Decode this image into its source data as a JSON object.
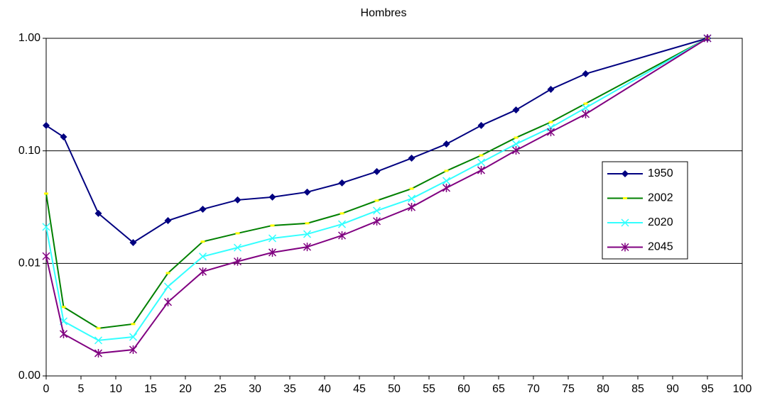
{
  "chart_data": {
    "type": "line",
    "title": "Hombres",
    "log_scale": true,
    "grid": true,
    "legend": "right",
    "x": [
      0,
      2.5,
      7.5,
      12.5,
      17.5,
      22.5,
      27.5,
      32.5,
      37.5,
      42.5,
      47.5,
      52.5,
      57.5,
      62.5,
      67.5,
      72.5,
      77.5,
      95
    ],
    "xlim": [
      0,
      100
    ],
    "xticks": [
      0,
      5,
      10,
      15,
      20,
      25,
      30,
      35,
      40,
      45,
      50,
      55,
      60,
      65,
      70,
      75,
      80,
      85,
      90,
      95,
      100
    ],
    "ylim": [
      0.001,
      1
    ],
    "yticks": [
      {
        "value": 0.001,
        "label": "0.00"
      },
      {
        "value": 0.01,
        "label": "0.01"
      },
      {
        "value": 0.1,
        "label": "0.10"
      },
      {
        "value": 1,
        "label": "1.00"
      }
    ],
    "series": [
      {
        "name": "1950",
        "color": "#000080",
        "marker": "diamond",
        "marker_color": "#000080",
        "values": [
          0.168,
          0.133,
          0.0278,
          0.0153,
          0.024,
          0.0303,
          0.0366,
          0.0388,
          0.043,
          0.0519,
          0.0654,
          0.086,
          0.115,
          0.168,
          0.231,
          0.352,
          0.484,
          1.0
        ]
      },
      {
        "name": "2002",
        "color": "#008000",
        "marker": "dash",
        "marker_color": "#ffff00",
        "values": [
          0.0417,
          0.0041,
          0.00265,
          0.00289,
          0.0082,
          0.0156,
          0.0185,
          0.0217,
          0.0227,
          0.0278,
          0.0361,
          0.0461,
          0.0664,
          0.0912,
          0.131,
          0.18,
          0.263,
          1.0
        ]
      },
      {
        "name": "2020",
        "color": "#33ffff",
        "marker": "x",
        "marker_color": "#33ffff",
        "values": [
          0.0211,
          0.00306,
          0.00207,
          0.00222,
          0.00623,
          0.0115,
          0.0138,
          0.0167,
          0.0182,
          0.0223,
          0.0294,
          0.0376,
          0.0541,
          0.0789,
          0.115,
          0.161,
          0.241,
          1.0
        ]
      },
      {
        "name": "2045",
        "color": "#800080",
        "marker": "star",
        "marker_color": "#800080",
        "values": [
          0.0116,
          0.00236,
          0.00159,
          0.00171,
          0.00453,
          0.00845,
          0.0104,
          0.0125,
          0.014,
          0.0177,
          0.0237,
          0.0316,
          0.0468,
          0.0673,
          0.101,
          0.147,
          0.212,
          1.0
        ]
      }
    ]
  }
}
